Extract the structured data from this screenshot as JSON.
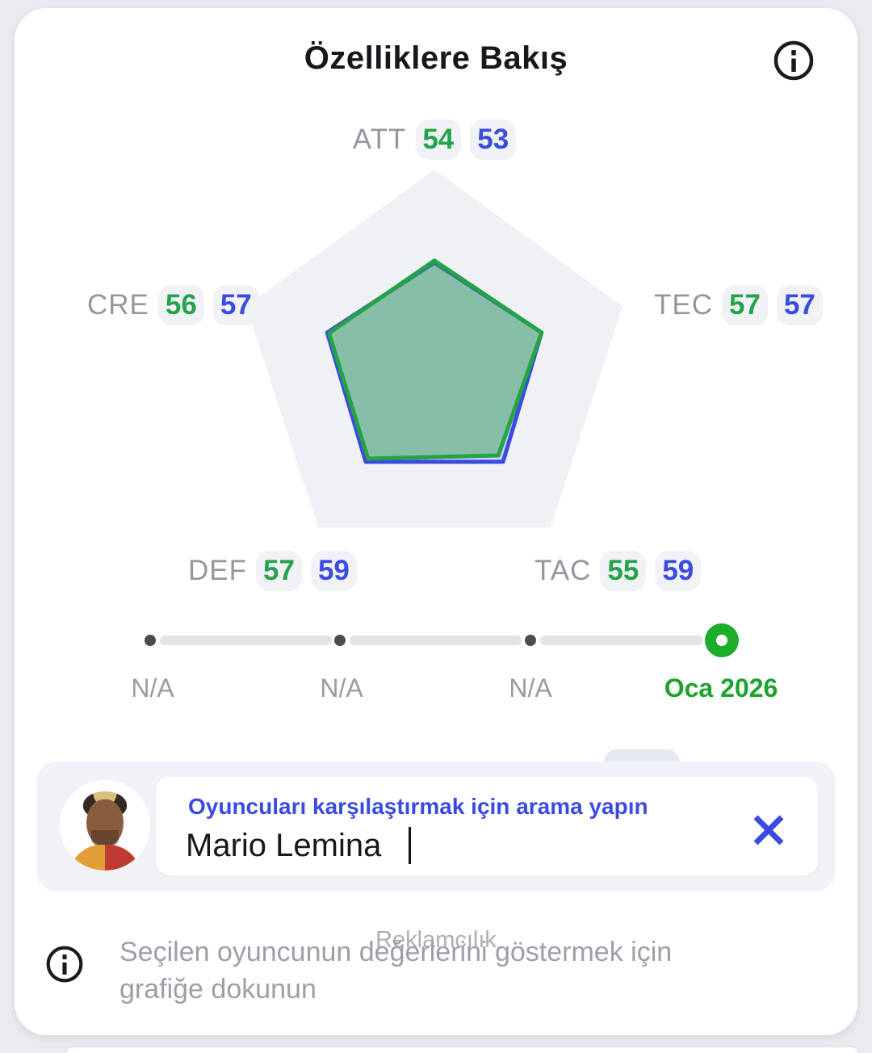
{
  "header": {
    "title": "Özelliklere Bakış"
  },
  "chart_data": {
    "type": "radar",
    "title": "Özelliklere Bakış",
    "scale_max": 100,
    "axes": [
      "ATT",
      "TEC",
      "TAC",
      "DEF",
      "CRE"
    ],
    "series": [
      {
        "name": "selected-period-green",
        "color": "#25a345",
        "fill": "rgba(37,163,69,0.42)",
        "values": [
          54,
          57,
          55,
          57,
          56
        ]
      },
      {
        "name": "compared-player-blue",
        "color": "#3a4be0",
        "fill": "rgba(58,75,224,0.18)",
        "values": [
          53,
          57,
          59,
          59,
          57
        ]
      }
    ],
    "attributes": [
      {
        "label": "ATT",
        "green": "54",
        "blue": "53"
      },
      {
        "label": "TEC",
        "green": "57",
        "blue": "57"
      },
      {
        "label": "TAC",
        "green": "55",
        "blue": "59"
      },
      {
        "label": "DEF",
        "green": "57",
        "blue": "59"
      },
      {
        "label": "CRE",
        "green": "56",
        "blue": "57"
      }
    ],
    "grid_color": "#eff1f4"
  },
  "timeline": {
    "active_color": "#1ead2b",
    "stops": [
      {
        "label": "N/A",
        "active": false
      },
      {
        "label": "N/A",
        "active": false
      },
      {
        "label": "N/A",
        "active": false
      },
      {
        "label": "Oca 2026",
        "active": true
      }
    ]
  },
  "search": {
    "label": "Oyuncuları karşılaştırmak için arama yapın",
    "value": "Mario Lemina",
    "avatar_alt": "Mario Lemina"
  },
  "footer": {
    "ad_label": "Reklamcılık",
    "hint": "Seçilen oyuncunun değerlerini göstermek için grafiğe dokunun"
  }
}
